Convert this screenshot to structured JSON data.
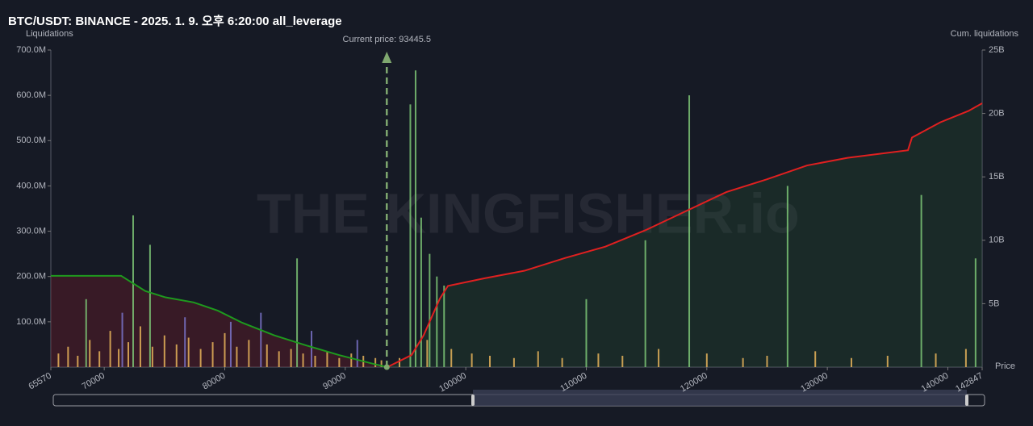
{
  "chart_data": {
    "type": "bar",
    "title": "BTC/USDT: BINANCE - 2025. 1. 9. 오후 6:20:00 all_leverage",
    "y_label": "Liquidations",
    "y2_label": "Cum. liquidations",
    "x_label": "Price",
    "watermark": "THE KINGFISHER.io",
    "current_price": {
      "value": 93445.5,
      "label": "Current price: 93445.5"
    },
    "xlim": [
      65570,
      142847
    ],
    "xticks": [
      65570,
      70000,
      80000,
      90000,
      100000,
      110000,
      120000,
      130000,
      140000,
      142847
    ],
    "ylim": [
      0,
      700
    ],
    "yticks": [
      {
        "value": 100,
        "label": "100.0M"
      },
      {
        "value": 200,
        "label": "200.0M"
      },
      {
        "value": 300,
        "label": "300.0M"
      },
      {
        "value": 400,
        "label": "400.0M"
      },
      {
        "value": 500,
        "label": "500.0M"
      },
      {
        "value": 600,
        "label": "600.0M"
      },
      {
        "value": 700,
        "label": "700.0M"
      }
    ],
    "y2lim": [
      0,
      25
    ],
    "y2ticks": [
      {
        "value": 5,
        "label": "5B"
      },
      {
        "value": 10,
        "label": "10B"
      },
      {
        "value": 15,
        "label": "15B"
      },
      {
        "value": 20,
        "label": "20B"
      },
      {
        "value": 25,
        "label": "25B"
      }
    ],
    "bar_series": [
      {
        "color": "#e8b45a",
        "x": [
          66200,
          67000,
          67800,
          68800,
          69600,
          70500,
          71200,
          72000,
          73000,
          74000,
          75000,
          76000,
          77000,
          78000,
          79000,
          80000,
          81000,
          82000,
          83500,
          84500,
          85500,
          86500,
          87500,
          88500,
          89500,
          90500,
          91500,
          92500,
          93000,
          94500,
          96800,
          98800,
          100500,
          102000,
          104000,
          106000,
          108000,
          111000,
          113000,
          116000,
          120000,
          123000,
          125000,
          129000,
          132000,
          135000,
          139000,
          141500
        ],
        "values": [
          30,
          45,
          25,
          60,
          35,
          80,
          40,
          55,
          90,
          45,
          70,
          50,
          65,
          40,
          55,
          75,
          45,
          60,
          50,
          35,
          40,
          30,
          25,
          35,
          20,
          30,
          25,
          20,
          15,
          20,
          60,
          40,
          30,
          25,
          20,
          35,
          20,
          30,
          25,
          40,
          30,
          20,
          25,
          35,
          20,
          25,
          30,
          40
        ]
      },
      {
        "color": "#7cc576",
        "x": [
          68500,
          72400,
          73800,
          86000,
          95400,
          95835,
          96300,
          97000,
          97600,
          98200,
          110000,
          114900,
          118541,
          126700,
          137800,
          142300
        ],
        "values": [
          150,
          335,
          270,
          240,
          580,
          655,
          330,
          250,
          200,
          180,
          150,
          280,
          600,
          400,
          380,
          240
        ]
      },
      {
        "color": "#7a73c9",
        "x": [
          71500,
          76700,
          80500,
          83000,
          87200,
          91000
        ],
        "values": [
          120,
          110,
          100,
          120,
          80,
          60
        ]
      }
    ],
    "series": [
      {
        "color": "#1e9a1e",
        "axis": "y2",
        "fill": "rgba(120,30,40,0.35)",
        "x": [
          65570,
          71400,
          73405,
          75080,
          77424,
          79433,
          81442,
          84120,
          86800,
          89480,
          92157,
          93445.5
        ],
        "values": [
          7.2,
          7.2,
          6.0,
          5.5,
          5.1,
          4.45,
          3.5,
          2.5,
          1.7,
          0.95,
          0.3,
          0
        ]
      },
      {
        "color": "#e02020",
        "axis": "y2",
        "fill": "rgba(40,90,50,0.25)",
        "x": [
          93495,
          95500,
          96500,
          97850,
          98520,
          101532,
          104880,
          108230,
          111580,
          114925,
          118275,
          121620,
          124970,
          128320,
          131670,
          136690,
          137025,
          139370,
          141715,
          142847
        ],
        "values": [
          0,
          0.95,
          2.5,
          5.4,
          6.4,
          7.0,
          7.6,
          8.6,
          9.5,
          10.8,
          12.3,
          13.8,
          14.8,
          15.9,
          16.5,
          17.1,
          18.1,
          19.3,
          20.2,
          20.8
        ]
      }
    ]
  }
}
